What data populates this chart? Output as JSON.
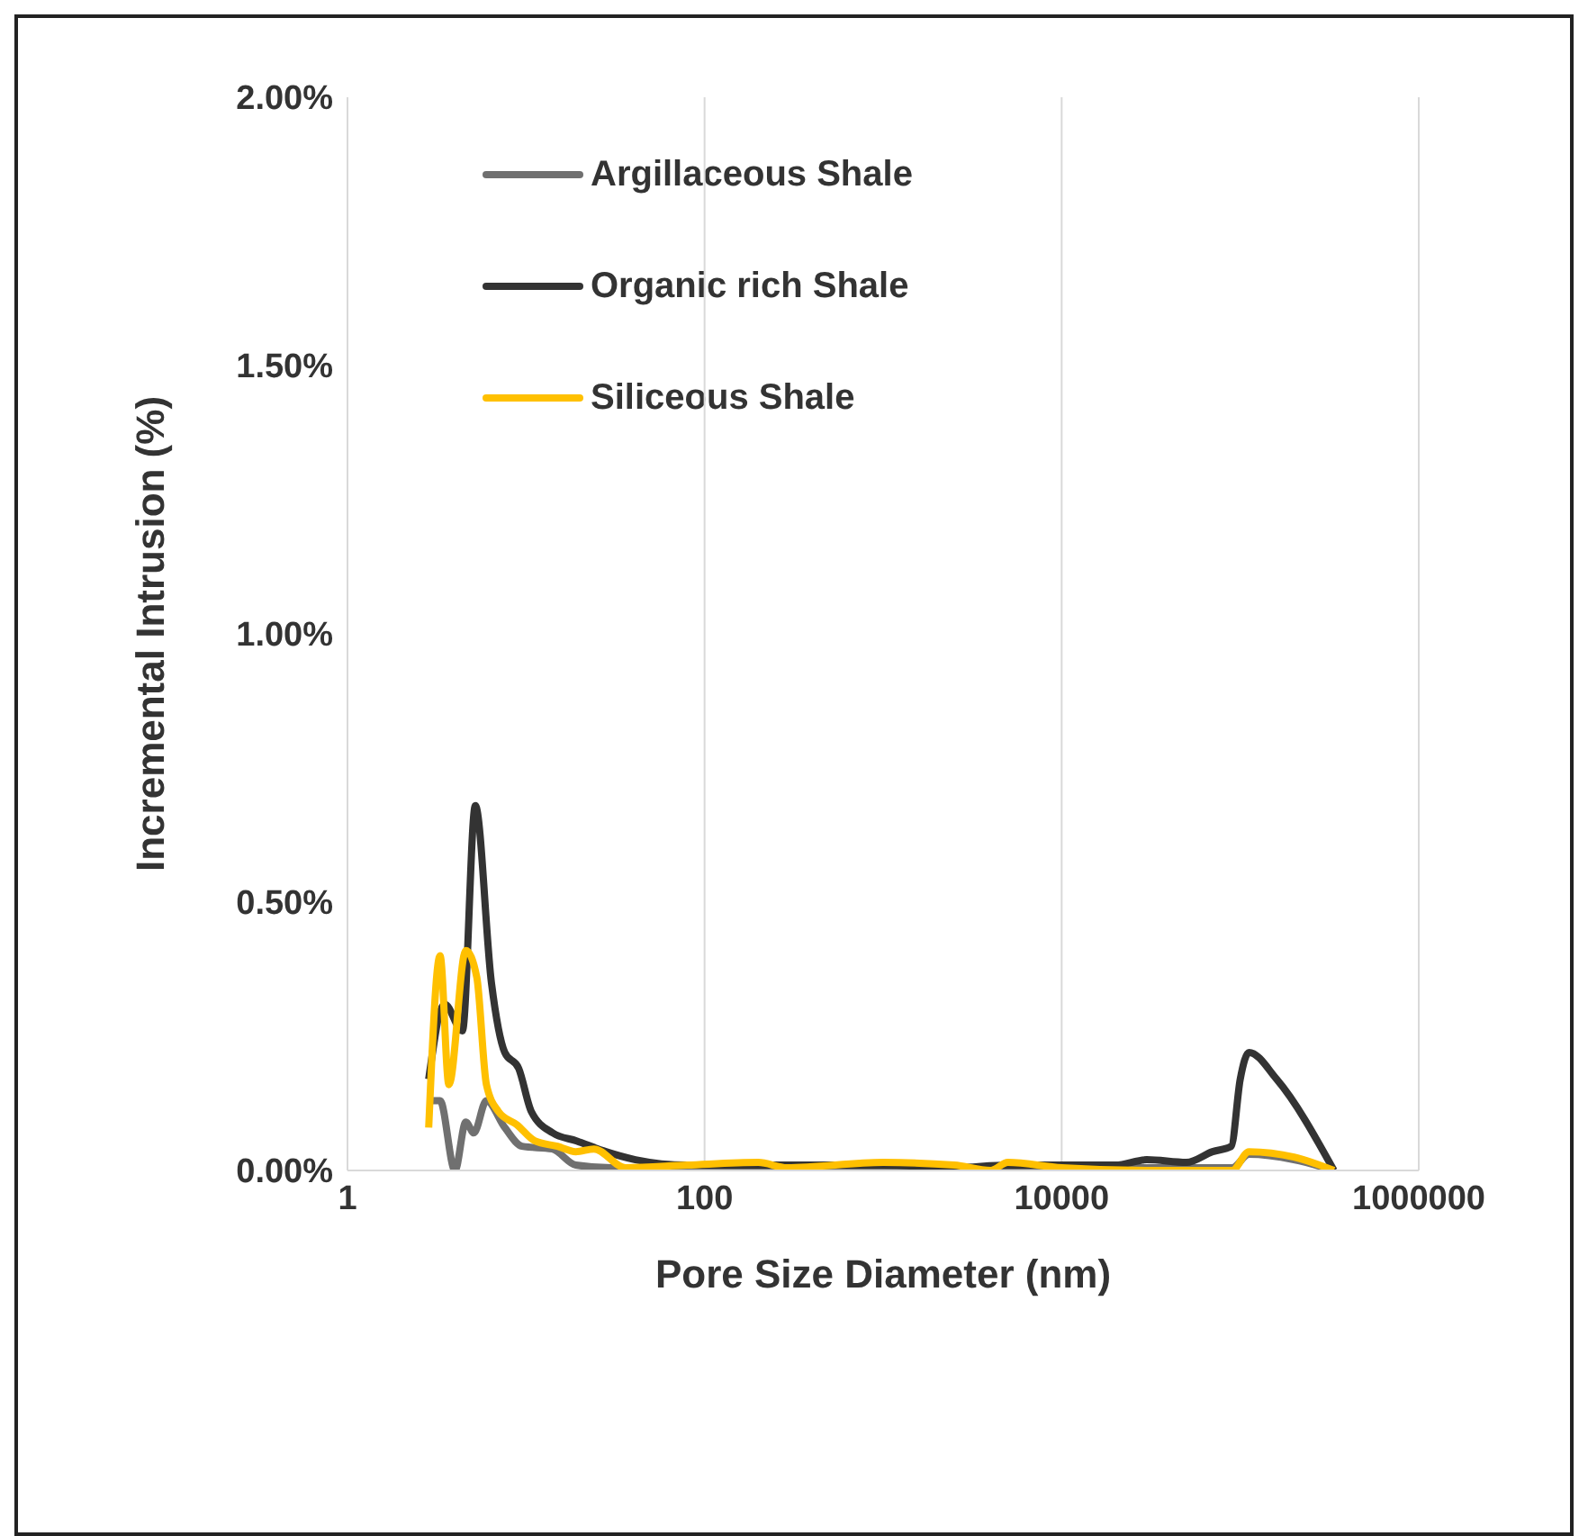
{
  "chart_data": {
    "type": "line",
    "xlabel": "Pore Size Diameter (nm)",
    "ylabel": "Incremental Intrusion (%)",
    "log": "x",
    "xlim": [
      1,
      1000000
    ],
    "xticks": [
      1,
      100,
      10000,
      1000000
    ],
    "ylim": [
      0,
      2
    ],
    "yticks": [
      {
        "value": 0,
        "label": "0.00%"
      },
      {
        "value": 0.5,
        "label": "0.50%"
      },
      {
        "value": 1,
        "label": "1.00%"
      },
      {
        "value": 1.5,
        "label": "1.50%"
      },
      {
        "value": 2,
        "label": "2.00%"
      }
    ],
    "grid": "x",
    "legend": "top left",
    "marker": "none",
    "line_style": "solid",
    "series": [
      {
        "name": "Argillaceous Shale",
        "color": "#707070",
        "x": [
          2.85,
          3.3,
          4.0,
          4.6,
          5.1,
          6.0,
          7.6,
          9.5,
          14,
          19,
          30,
          60,
          200,
          1000,
          5000,
          20000,
          60000,
          90000,
          112000,
          200000,
          335000
        ],
        "values": [
          0.13,
          0.13,
          0.0,
          0.09,
          0.07,
          0.13,
          0.08,
          0.045,
          0.04,
          0.01,
          0.005,
          0.005,
          0.005,
          0.005,
          0.005,
          0.005,
          0.005,
          0.005,
          0.03,
          0.02,
          0.0
        ]
      },
      {
        "name": "Organic rich Shale",
        "color": "#333333",
        "x": [
          2.85,
          3.5,
          4.4,
          5.2,
          6.4,
          7.6,
          9.1,
          10.7,
          14.1,
          19.2,
          28,
          41,
          80,
          200,
          1000,
          2500,
          5000,
          10000,
          20000,
          30000,
          50000,
          70000,
          89000,
          100000,
          112000,
          160000,
          335000
        ],
        "values": [
          0.17,
          0.31,
          0.26,
          0.68,
          0.35,
          0.22,
          0.19,
          0.11,
          0.07,
          0.055,
          0.035,
          0.02,
          0.01,
          0.01,
          0.01,
          0.005,
          0.01,
          0.01,
          0.01,
          0.02,
          0.015,
          0.035,
          0.045,
          0.17,
          0.22,
          0.17,
          0.0
        ]
      },
      {
        "name": "Siliceous Shale",
        "color": "#ffc000",
        "x": [
          2.85,
          3.3,
          3.7,
          4.6,
          5.3,
          6.0,
          7.0,
          8.9,
          11.2,
          15,
          19,
          24,
          36,
          80,
          200,
          290,
          1000,
          2500,
          4000,
          5000,
          10000,
          30000,
          90000,
          112000,
          200000,
          335000
        ],
        "values": [
          0.08,
          0.4,
          0.16,
          0.41,
          0.36,
          0.16,
          0.11,
          0.085,
          0.055,
          0.045,
          0.035,
          0.04,
          0.005,
          0.01,
          0.015,
          0.005,
          0.015,
          0.01,
          0.0,
          0.015,
          0.005,
          0.0,
          0.0,
          0.035,
          0.025,
          0.0
        ]
      }
    ]
  }
}
